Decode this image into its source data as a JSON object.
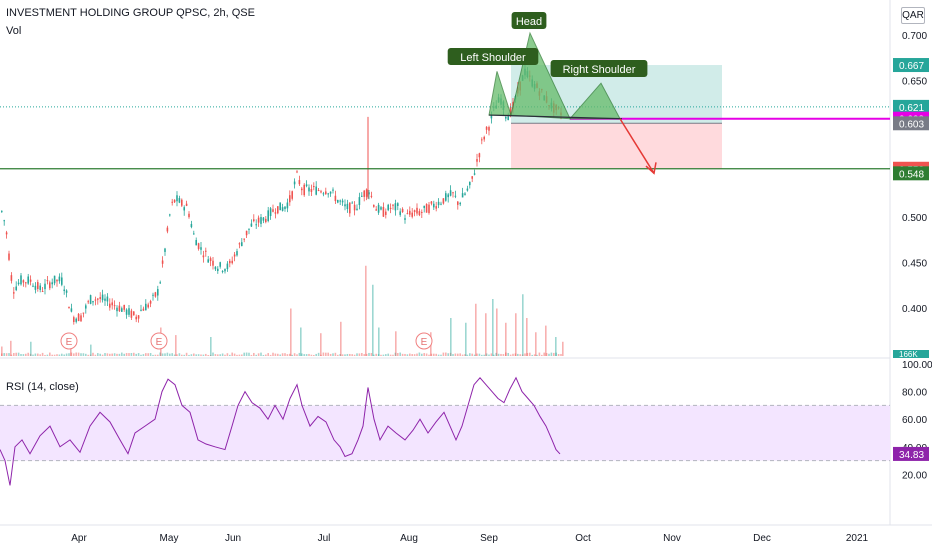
{
  "header": {
    "title": "INVESTMENT HOLDING GROUP QPSC, 2h, QSE",
    "vol_label": "Vol",
    "rsi_label": "RSI (14, close)",
    "currency": "QAR"
  },
  "colors": {
    "up": "#26a69a",
    "down": "#ef5350",
    "rsi_line": "#8e24aa",
    "rsi_band": "#f3e5ff",
    "support": "#2e7d32",
    "magenta": "#e600e6",
    "pattern_fill": "#66bb6a",
    "pattern_label_bg": "#2e5e1e",
    "target_zone": "#b2dfdb",
    "stop_zone": "#ffcdd2",
    "arrow": "#e53935"
  },
  "chart_data": {
    "type": "candlestick",
    "x_axis": {
      "tick_labels": [
        "Apr",
        "May",
        "Jun",
        "Jul",
        "Aug",
        "Sep",
        "Oct",
        "Nov",
        "Dec",
        "2021"
      ]
    },
    "price_axis": {
      "range": [
        0.36,
        0.72
      ],
      "tick_labels": [
        "0.700",
        "0.650",
        "0.600",
        "0.550",
        "0.500",
        "0.450",
        "0.400"
      ],
      "price_tags": [
        {
          "label": "0.667",
          "color": "#26a69a"
        },
        {
          "label": "0.621",
          "color": "#26a69a"
        },
        {
          "label": "0.608",
          "color": "#e600e6"
        },
        {
          "label": "0.603",
          "color": "#787b86"
        },
        {
          "label": "0.553",
          "color": "#ef5350"
        },
        {
          "label": "0.548",
          "color": "#2e7d32"
        }
      ]
    },
    "price_path": [
      [
        0,
        0.51
      ],
      [
        5,
        0.49
      ],
      [
        12,
        0.42
      ],
      [
        20,
        0.43
      ],
      [
        30,
        0.43
      ],
      [
        40,
        0.42
      ],
      [
        52,
        0.43
      ],
      [
        62,
        0.43
      ],
      [
        72,
        0.39
      ],
      [
        80,
        0.39
      ],
      [
        90,
        0.41
      ],
      [
        100,
        0.41
      ],
      [
        110,
        0.405
      ],
      [
        120,
        0.4
      ],
      [
        128,
        0.395
      ],
      [
        135,
        0.39
      ],
      [
        142,
        0.4
      ],
      [
        150,
        0.405
      ],
      [
        158,
        0.42
      ],
      [
        165,
        0.47
      ],
      [
        170,
        0.51
      ],
      [
        175,
        0.52
      ],
      [
        180,
        0.515
      ],
      [
        187,
        0.51
      ],
      [
        193,
        0.48
      ],
      [
        200,
        0.465
      ],
      [
        208,
        0.455
      ],
      [
        218,
        0.445
      ],
      [
        228,
        0.445
      ],
      [
        235,
        0.46
      ],
      [
        242,
        0.475
      ],
      [
        250,
        0.49
      ],
      [
        258,
        0.495
      ],
      [
        266,
        0.5
      ],
      [
        275,
        0.51
      ],
      [
        283,
        0.51
      ],
      [
        290,
        0.52
      ],
      [
        296,
        0.545
      ],
      [
        302,
        0.53
      ],
      [
        310,
        0.53
      ],
      [
        318,
        0.53
      ],
      [
        328,
        0.53
      ],
      [
        336,
        0.52
      ],
      [
        345,
        0.51
      ],
      [
        355,
        0.51
      ],
      [
        362,
        0.525
      ],
      [
        368,
        0.53
      ],
      [
        375,
        0.51
      ],
      [
        382,
        0.505
      ],
      [
        390,
        0.51
      ],
      [
        398,
        0.51
      ],
      [
        405,
        0.5
      ],
      [
        413,
        0.505
      ],
      [
        420,
        0.505
      ],
      [
        428,
        0.51
      ],
      [
        436,
        0.515
      ],
      [
        444,
        0.52
      ],
      [
        452,
        0.525
      ],
      [
        458,
        0.515
      ],
      [
        464,
        0.525
      ],
      [
        470,
        0.535
      ],
      [
        476,
        0.56
      ],
      [
        482,
        0.585
      ],
      [
        488,
        0.6
      ],
      [
        494,
        0.62
      ],
      [
        500,
        0.63
      ],
      [
        506,
        0.61
      ],
      [
        512,
        0.62
      ],
      [
        518,
        0.64
      ],
      [
        524,
        0.66
      ],
      [
        530,
        0.65
      ],
      [
        538,
        0.64
      ],
      [
        545,
        0.63
      ],
      [
        552,
        0.62
      ],
      [
        560,
        0.615
      ],
      [
        563,
        0.61
      ]
    ],
    "volume_spikes": [
      [
        1,
        1
      ],
      [
        10,
        1.6
      ],
      [
        30,
        1.5
      ],
      [
        70,
        2.1
      ],
      [
        90,
        1.2
      ],
      [
        160,
        3.0
      ],
      [
        175,
        2.2
      ],
      [
        210,
        2.0
      ],
      [
        290,
        5.0
      ],
      [
        300,
        3.0
      ],
      [
        320,
        2.4
      ],
      [
        340,
        3.6
      ],
      [
        365,
        9.5
      ],
      [
        372,
        7.5
      ],
      [
        378,
        3.0
      ],
      [
        395,
        2.6
      ],
      [
        430,
        2.5
      ],
      [
        450,
        4.0
      ],
      [
        465,
        3.5
      ],
      [
        475,
        5.5
      ],
      [
        485,
        4.5
      ],
      [
        492,
        6.0
      ],
      [
        496,
        5.0
      ],
      [
        505,
        3.5
      ],
      [
        515,
        4.5
      ],
      [
        522,
        6.5
      ],
      [
        526,
        4.0
      ],
      [
        535,
        2.5
      ],
      [
        545,
        3.2
      ],
      [
        555,
        2.0
      ],
      [
        562,
        1.5
      ]
    ],
    "volume_tag": "166K",
    "earnings_markers": [
      "E",
      "E",
      "E"
    ],
    "annotations": {
      "left_shoulder": "Left Shoulder",
      "head": "Head",
      "right_shoulder": "Right Shoulder"
    },
    "levels": {
      "support": 0.553,
      "neckline": 0.608,
      "target_top": 0.667,
      "entry": 0.621,
      "stop_bottom": 0.553
    },
    "rsi": {
      "range": [
        0,
        100
      ],
      "tick_labels": [
        "100.00",
        "80.00",
        "60.00",
        "40.00",
        "20.00"
      ],
      "band": [
        30,
        70
      ],
      "current_label": "34.83",
      "current_value": 34.83,
      "path": [
        [
          0,
          38
        ],
        [
          5,
          30
        ],
        [
          10,
          12
        ],
        [
          15,
          40
        ],
        [
          22,
          45
        ],
        [
          30,
          35
        ],
        [
          40,
          48
        ],
        [
          50,
          55
        ],
        [
          60,
          40
        ],
        [
          70,
          45
        ],
        [
          80,
          36
        ],
        [
          90,
          55
        ],
        [
          100,
          65
        ],
        [
          110,
          58
        ],
        [
          120,
          45
        ],
        [
          128,
          35
        ],
        [
          135,
          50
        ],
        [
          145,
          55
        ],
        [
          155,
          60
        ],
        [
          162,
          80
        ],
        [
          168,
          89
        ],
        [
          175,
          85
        ],
        [
          182,
          70
        ],
        [
          190,
          65
        ],
        [
          198,
          45
        ],
        [
          206,
          42
        ],
        [
          215,
          40
        ],
        [
          225,
          38
        ],
        [
          232,
          55
        ],
        [
          238,
          70
        ],
        [
          245,
          80
        ],
        [
          252,
          72
        ],
        [
          260,
          68
        ],
        [
          268,
          60
        ],
        [
          275,
          70
        ],
        [
          283,
          60
        ],
        [
          290,
          75
        ],
        [
          297,
          85
        ],
        [
          302,
          70
        ],
        [
          310,
          55
        ],
        [
          318,
          62
        ],
        [
          326,
          58
        ],
        [
          334,
          45
        ],
        [
          340,
          40
        ],
        [
          345,
          33
        ],
        [
          352,
          35
        ],
        [
          358,
          45
        ],
        [
          363,
          55
        ],
        [
          368,
          83
        ],
        [
          374,
          60
        ],
        [
          380,
          45
        ],
        [
          388,
          55
        ],
        [
          396,
          50
        ],
        [
          405,
          45
        ],
        [
          413,
          52
        ],
        [
          420,
          60
        ],
        [
          428,
          50
        ],
        [
          436,
          58
        ],
        [
          444,
          65
        ],
        [
          450,
          55
        ],
        [
          456,
          45
        ],
        [
          462,
          55
        ],
        [
          468,
          70
        ],
        [
          474,
          85
        ],
        [
          480,
          90
        ],
        [
          486,
          85
        ],
        [
          492,
          80
        ],
        [
          498,
          75
        ],
        [
          504,
          72
        ],
        [
          510,
          82
        ],
        [
          516,
          90
        ],
        [
          522,
          80
        ],
        [
          528,
          75
        ],
        [
          534,
          70
        ],
        [
          540,
          62
        ],
        [
          546,
          55
        ],
        [
          552,
          45
        ],
        [
          556,
          38
        ],
        [
          560,
          34.83
        ]
      ]
    }
  }
}
